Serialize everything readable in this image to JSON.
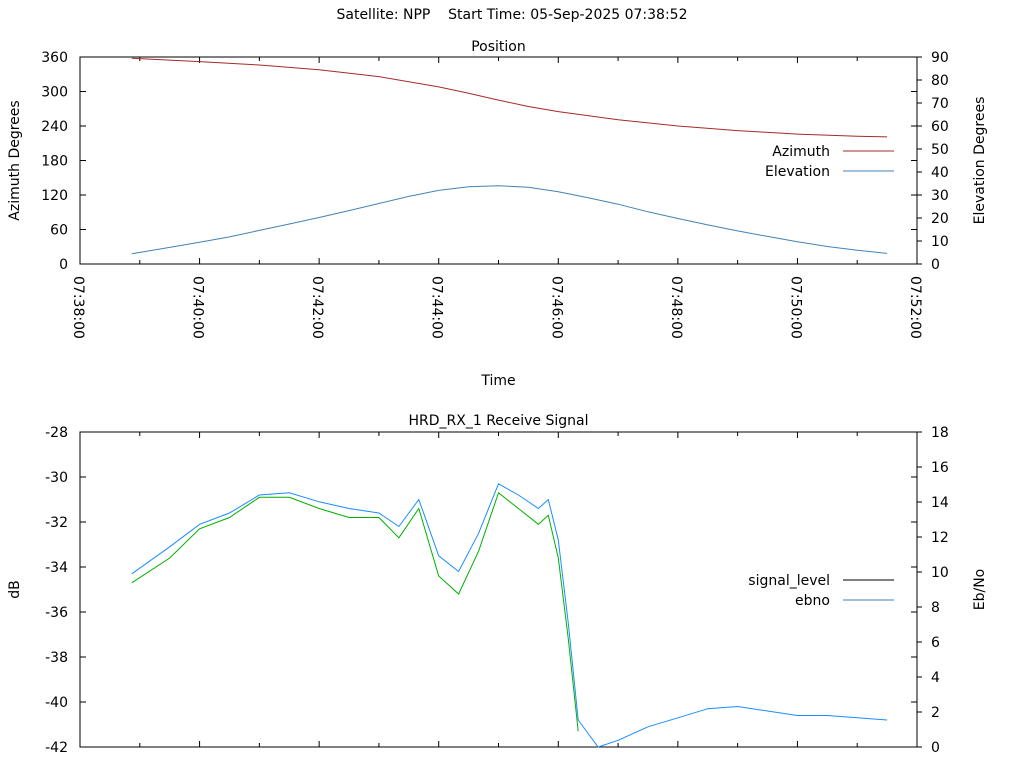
{
  "page_title": "Satellite: NPP    Start Time: 05-Sep-2025 07:38:52",
  "chart_data": [
    {
      "type": "line",
      "title": "Position",
      "xlabel": "Time",
      "ylabel": "Azimuth Degrees",
      "y2label": "Elevation Degrees",
      "xticks": [
        "07:38:00",
        "07:40:00",
        "07:42:00",
        "07:44:00",
        "07:46:00",
        "07:48:00",
        "07:50:00",
        "07:52:00"
      ],
      "yticks": [
        0,
        60,
        120,
        180,
        240,
        300,
        360
      ],
      "y2ticks": [
        0,
        10,
        20,
        30,
        40,
        50,
        60,
        70,
        80,
        90
      ],
      "ylim": [
        0,
        360
      ],
      "y2lim": [
        0,
        90
      ],
      "xlim": [
        "07:38:00",
        "07:52:00"
      ],
      "legend_position": "right",
      "series": [
        {
          "name": "Azimuth",
          "axis": "y",
          "color": "#a52a2a",
          "x": [
            "07:38:52",
            "07:40:00",
            "07:41:00",
            "07:42:00",
            "07:43:00",
            "07:44:00",
            "07:44:30",
            "07:45:00",
            "07:45:30",
            "07:46:00",
            "07:47:00",
            "07:48:00",
            "07:49:00",
            "07:50:00",
            "07:51:00",
            "07:51:30"
          ],
          "values": [
            358,
            352,
            346,
            338,
            326,
            308,
            297,
            285,
            274,
            265,
            251,
            240,
            232,
            226,
            222,
            221
          ]
        },
        {
          "name": "Elevation",
          "axis": "y2",
          "color": "#4682b4",
          "x": [
            "07:38:52",
            "07:39:30",
            "07:40:00",
            "07:40:30",
            "07:41:00",
            "07:41:30",
            "07:42:00",
            "07:42:30",
            "07:43:00",
            "07:43:30",
            "07:44:00",
            "07:44:30",
            "07:45:00",
            "07:45:30",
            "07:46:00",
            "07:46:30",
            "07:47:00",
            "07:47:30",
            "07:48:00",
            "07:48:30",
            "07:49:00",
            "07:49:30",
            "07:50:00",
            "07:50:30",
            "07:51:00",
            "07:51:30"
          ],
          "values": [
            4.5,
            7.2,
            9.5,
            11.8,
            14.6,
            17.4,
            20.2,
            23.2,
            26.3,
            29.4,
            32.0,
            33.6,
            34.0,
            33.4,
            31.4,
            28.8,
            26.0,
            22.7,
            19.8,
            17.0,
            14.4,
            12.0,
            9.7,
            7.6,
            6.0,
            4.6
          ]
        }
      ]
    },
    {
      "type": "line",
      "title": "HRD_RX_1 Receive Signal",
      "xlabel": "",
      "ylabel": "dB",
      "y2label": "Eb/No",
      "yticks": [
        -42,
        -40,
        -38,
        -36,
        -34,
        -32,
        -30,
        -28
      ],
      "y2ticks": [
        0,
        2,
        4,
        6,
        8,
        10,
        12,
        14,
        16,
        18
      ],
      "ylim": [
        -42,
        -28
      ],
      "y2lim": [
        0,
        18
      ],
      "xlim": [
        "07:38:00",
        "07:52:00"
      ],
      "legend_position": "right",
      "series": [
        {
          "name": "signal_level",
          "axis": "y",
          "color": "#1a8cff",
          "x": [
            "07:38:52",
            "07:39:30",
            "07:40:00",
            "07:40:30",
            "07:41:00",
            "07:41:30",
            "07:42:00",
            "07:42:30",
            "07:43:00",
            "07:43:20",
            "07:43:40",
            "07:44:00",
            "07:44:20",
            "07:44:40",
            "07:45:00",
            "07:45:20",
            "07:45:40",
            "07:45:50",
            "07:46:00",
            "07:46:10",
            "07:46:20",
            "07:46:40",
            "07:47:00",
            "07:47:30",
            "07:48:00",
            "07:48:30",
            "07:49:00",
            "07:49:30",
            "07:50:00",
            "07:50:30",
            "07:51:00",
            "07:51:30"
          ],
          "values": [
            -34.3,
            -33.1,
            -32.1,
            -31.6,
            -30.8,
            -30.7,
            -31.1,
            -31.4,
            -31.6,
            -32.2,
            -31.0,
            -33.5,
            -34.2,
            -32.5,
            -30.3,
            -30.8,
            -31.4,
            -31.0,
            -32.8,
            -36.5,
            -40.8,
            -42.3,
            -41.7,
            -41.1,
            -40.7,
            -40.3,
            -40.2,
            -40.4,
            -40.6,
            -40.6,
            -40.7,
            -40.8
          ]
        },
        {
          "name": "ebno",
          "axis": "y",
          "color": "#00b000",
          "x": [
            "07:38:52",
            "07:39:30",
            "07:40:00",
            "07:40:30",
            "07:41:00",
            "07:41:30",
            "07:42:00",
            "07:42:30",
            "07:43:00",
            "07:43:20",
            "07:43:40",
            "07:44:00",
            "07:44:20",
            "07:44:40",
            "07:45:00",
            "07:45:20",
            "07:45:40",
            "07:45:50",
            "07:46:00",
            "07:46:10",
            "07:46:20"
          ],
          "values": [
            -34.7,
            -33.6,
            -32.3,
            -31.8,
            -30.9,
            -30.9,
            -31.4,
            -31.8,
            -31.8,
            -32.7,
            -31.4,
            -34.4,
            -35.2,
            -33.3,
            -30.7,
            -31.4,
            -32.1,
            -31.7,
            -33.6,
            -37.2,
            -41.3
          ]
        }
      ],
      "legend_entries": [
        {
          "name": "signal_level",
          "color": "#000000"
        },
        {
          "name": "ebno",
          "color": "#4682b4"
        }
      ]
    }
  ]
}
